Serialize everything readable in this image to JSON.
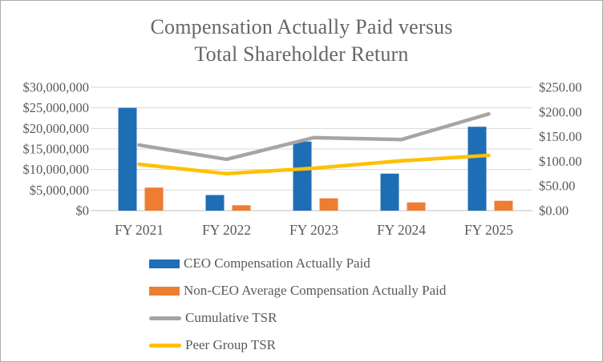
{
  "chart_data": {
    "type": "combo-bar-line",
    "title_lines": [
      "Compensation Actually Paid versus",
      "Total Shareholder Return"
    ],
    "categories": [
      "FY 2021",
      "FY 2022",
      "FY 2023",
      "FY 2024",
      "FY 2025"
    ],
    "series": [
      {
        "name": "CEO Compensation Actually Paid",
        "type": "bar",
        "axis": "left",
        "color": "#1e6eb5",
        "values": [
          25000000,
          3800000,
          16800000,
          9000000,
          20400000
        ]
      },
      {
        "name": "Non-CEO Average Compensation Actually Paid",
        "type": "bar",
        "axis": "left",
        "color": "#ed7d31",
        "values": [
          5600000,
          1300000,
          3000000,
          2000000,
          2400000
        ]
      },
      {
        "name": "Cumulative TSR",
        "type": "line",
        "axis": "right",
        "color": "#a5a5a5",
        "values": [
          133,
          104,
          148,
          144,
          196
        ]
      },
      {
        "name": "Peer Group TSR",
        "type": "line",
        "axis": "right",
        "color": "#ffc000",
        "values": [
          94,
          75,
          86,
          101,
          112
        ]
      }
    ],
    "axes": {
      "left": {
        "min": 0,
        "max": 30000000,
        "step": 5000000,
        "tick_labels": [
          "$30,000,000",
          "$25,000,000",
          "$20,000,000",
          "$15,000,000",
          "$10,000,000",
          "$5,000,000",
          "$0"
        ]
      },
      "right": {
        "min": 0,
        "max": 250,
        "step": 50,
        "tick_labels": [
          "$250.00",
          "$200.00",
          "$150.00",
          "$100.00",
          "$50.00",
          "$0.00"
        ]
      }
    },
    "grid": true,
    "legend_position": "bottom-left"
  },
  "style": {
    "title_color": "#666666",
    "axis_text_color": "#595959",
    "gridline_color": "#d9d9d9",
    "baseline_color": "#c0c0c0",
    "border_color": "#ababab",
    "background": "#ffffff"
  }
}
